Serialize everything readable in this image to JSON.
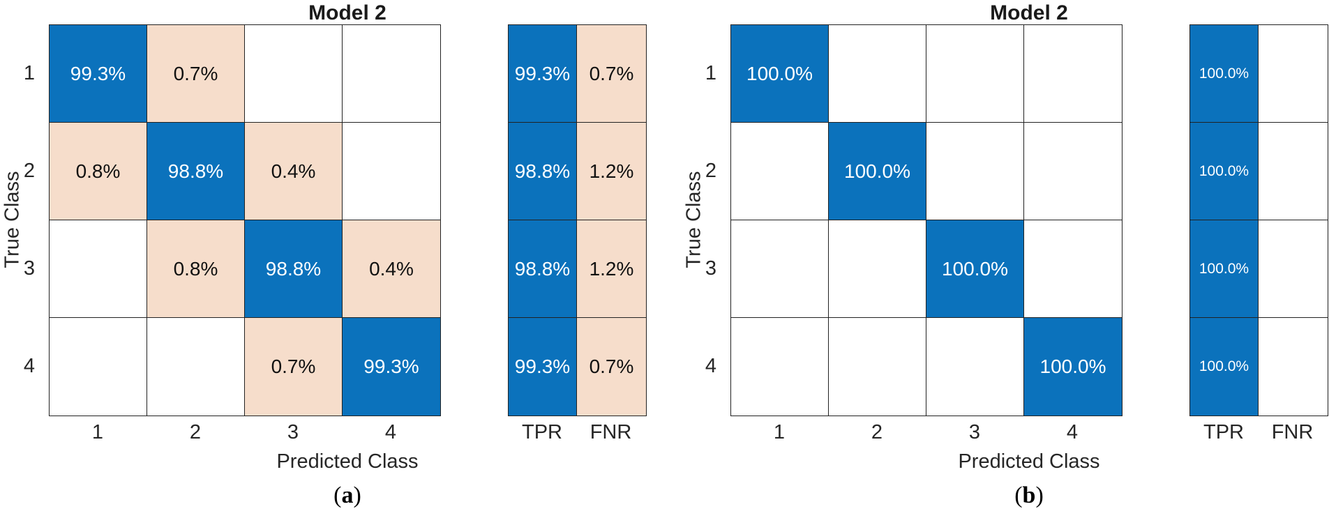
{
  "colors": {
    "diagonal_fill": "#0b72bc",
    "off_diagonal_fill": "#f6ddcb",
    "empty_fill": "#ffffff",
    "grid_line": "#222222",
    "text_on_fill": "#ffffff",
    "text_dark": "#111111"
  },
  "chart_data": [
    {
      "type": "heatmap",
      "subtype": "confusion_matrix_with_row_summary",
      "title": "Model 2",
      "xlabel": "Predicted Class",
      "ylabel": "True Class",
      "caption_open": "(",
      "caption_letter": "a",
      "caption_close": ")",
      "classes": [
        "1",
        "2",
        "3",
        "4"
      ],
      "matrix_percent": [
        [
          99.3,
          0.7,
          null,
          null
        ],
        [
          0.8,
          98.8,
          0.4,
          null
        ],
        [
          null,
          0.8,
          98.8,
          0.4
        ],
        [
          null,
          null,
          0.7,
          99.3
        ]
      ],
      "cell_labels": [
        [
          "99.3%",
          "0.7%",
          "",
          ""
        ],
        [
          "0.8%",
          "98.8%",
          "0.4%",
          ""
        ],
        [
          "",
          "0.8%",
          "98.8%",
          "0.4%"
        ],
        [
          "",
          "",
          "0.7%",
          "99.3%"
        ]
      ],
      "summary_columns": [
        "TPR",
        "FNR"
      ],
      "tpr_percent": [
        99.3,
        98.8,
        98.8,
        99.3
      ],
      "tpr_labels": [
        "99.3%",
        "98.8%",
        "98.8%",
        "99.3%"
      ],
      "fnr_percent": [
        0.7,
        1.2,
        1.2,
        0.7
      ],
      "fnr_labels": [
        "0.7%",
        "1.2%",
        "1.2%",
        "0.7%"
      ],
      "legend_position": "none",
      "grid": true
    },
    {
      "type": "heatmap",
      "subtype": "confusion_matrix_with_row_summary",
      "title": "Model 2",
      "xlabel": "Predicted Class",
      "ylabel": "True Class",
      "caption_open": "(",
      "caption_letter": "b",
      "caption_close": ")",
      "classes": [
        "1",
        "2",
        "3",
        "4"
      ],
      "matrix_percent": [
        [
          100.0,
          null,
          null,
          null
        ],
        [
          null,
          100.0,
          null,
          null
        ],
        [
          null,
          null,
          100.0,
          null
        ],
        [
          null,
          null,
          null,
          100.0
        ]
      ],
      "cell_labels": [
        [
          "100.0%",
          "",
          "",
          ""
        ],
        [
          "",
          "100.0%",
          "",
          ""
        ],
        [
          "",
          "",
          "100.0%",
          ""
        ],
        [
          "",
          "",
          "",
          "100.0%"
        ]
      ],
      "summary_columns": [
        "TPR",
        "FNR"
      ],
      "tpr_percent": [
        100.0,
        100.0,
        100.0,
        100.0
      ],
      "tpr_labels": [
        "100.0%",
        "100.0%",
        "100.0%",
        "100.0%"
      ],
      "fnr_percent": [
        null,
        null,
        null,
        null
      ],
      "fnr_labels": [
        "",
        "",
        "",
        ""
      ],
      "legend_position": "none",
      "grid": true
    }
  ]
}
